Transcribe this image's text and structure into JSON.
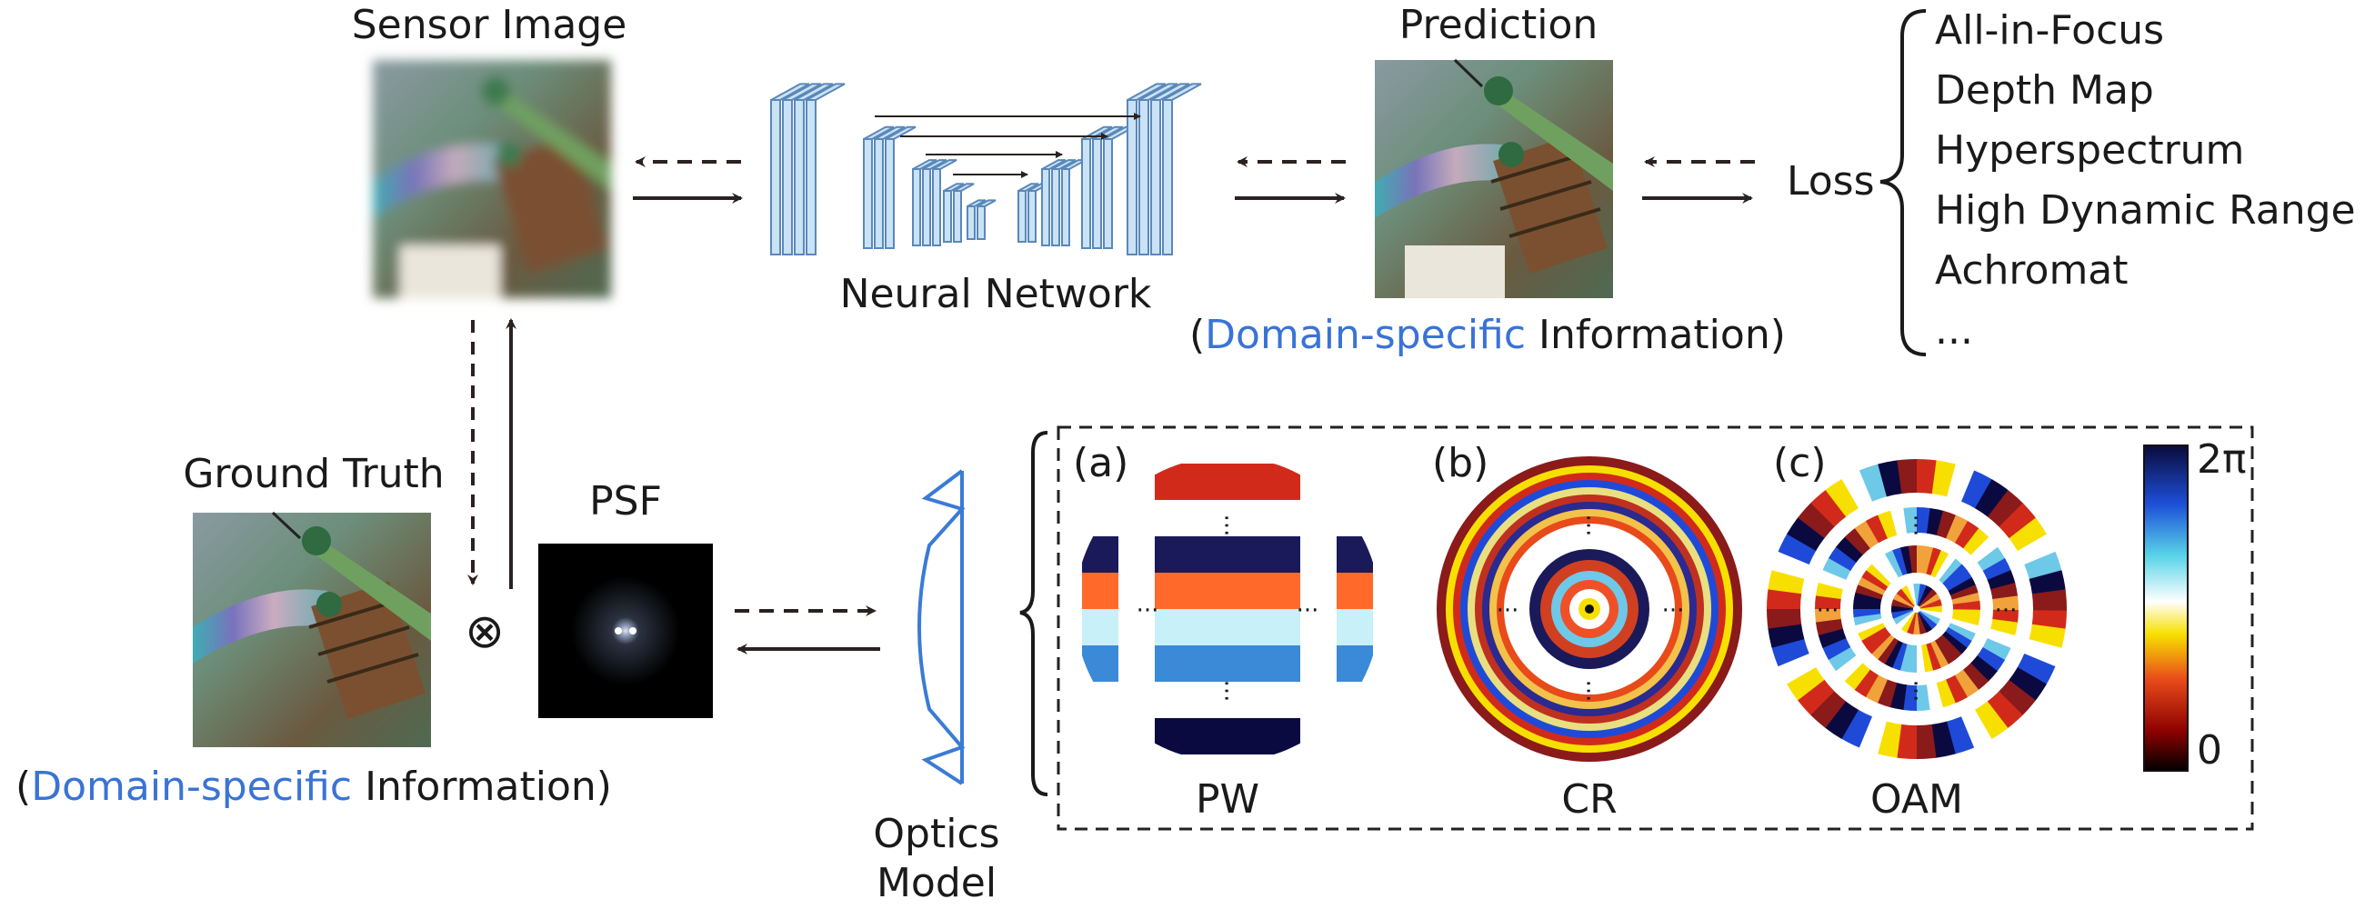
{
  "labels": {
    "sensor_image": "Sensor Image",
    "prediction": "Prediction",
    "neural_network": "Neural Network",
    "loss": "Loss",
    "ground_truth": "Ground Truth",
    "psf": "PSF",
    "optics_model_line1": "Optics",
    "optics_model_line2": "Model",
    "convolve_symbol": "⊗"
  },
  "domain_info_top": {
    "open": "(",
    "highlight": "Domain-specific",
    "rest": " Information)"
  },
  "domain_info_bottom": {
    "open": "(",
    "highlight": "Domain-specific",
    "rest": " Information)"
  },
  "outputs": [
    "All-in-Focus",
    "Depth Map",
    "Hyperspectrum",
    "High Dynamic Range",
    "Achromat",
    "..."
  ],
  "panels": [
    {
      "tag": "(a)",
      "name": "PW"
    },
    {
      "tag": "(b)",
      "name": "CR"
    },
    {
      "tag": "(c)",
      "name": "OAM"
    }
  ],
  "colorbar": {
    "max": "2π",
    "min": "0"
  },
  "ellipsis": "···",
  "colors": {
    "highlight": "#3a73d6",
    "network_fill": "#c9e2f5",
    "network_stroke": "#5b88b8",
    "optics_line": "#3a7bd5"
  }
}
